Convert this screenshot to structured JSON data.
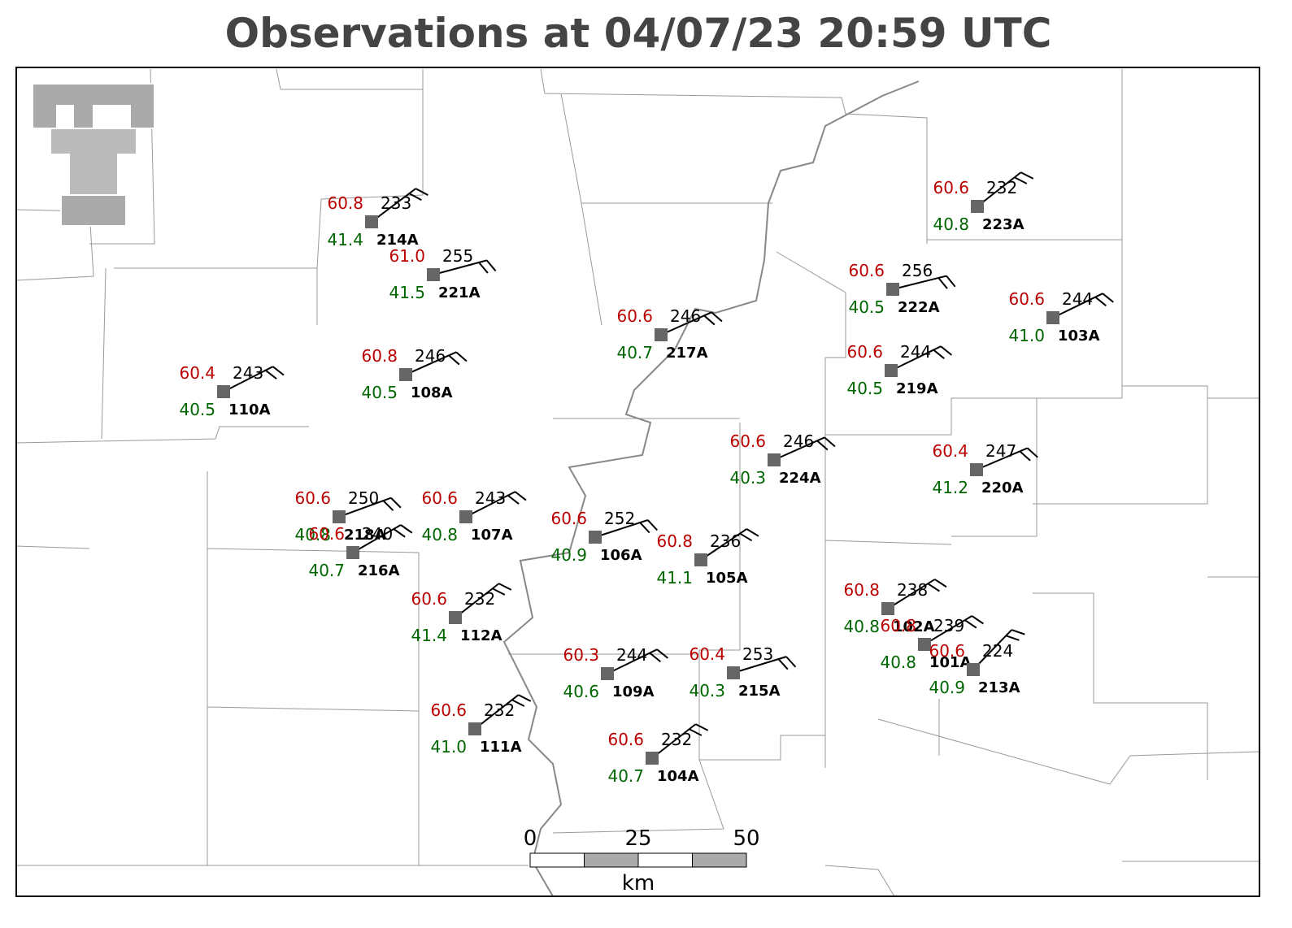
{
  "title": "Observations at 04/07/23 20:59 UTC",
  "stations": [
    {
      "id": "214A",
      "temp": "60.8",
      "dew": "41.4",
      "dir": 233
    },
    {
      "id": "221A",
      "temp": "61.0",
      "dew": "41.5",
      "dir": 255
    },
    {
      "id": "217A",
      "temp": "60.6",
      "dew": "40.7",
      "dir": 246
    },
    {
      "id": "110A",
      "temp": "60.4",
      "dew": "40.5",
      "dir": 243
    },
    {
      "id": "108A",
      "temp": "60.8",
      "dew": "40.5",
      "dir": 246
    },
    {
      "id": "223A",
      "temp": "60.6",
      "dew": "40.8",
      "dir": 232
    },
    {
      "id": "222A",
      "temp": "60.6",
      "dew": "40.5",
      "dir": 256
    },
    {
      "id": "103A",
      "temp": "60.6",
      "dew": "41.0",
      "dir": 244
    },
    {
      "id": "219A",
      "temp": "60.6",
      "dew": "40.5",
      "dir": 244
    },
    {
      "id": "224A",
      "temp": "60.6",
      "dew": "40.3",
      "dir": 246
    },
    {
      "id": "220A",
      "temp": "60.4",
      "dew": "41.2",
      "dir": 247
    },
    {
      "id": "218A",
      "temp": "60.6",
      "dew": "40.8",
      "dir": 250
    },
    {
      "id": "216A",
      "temp": "60.6",
      "dew": "40.7",
      "dir": 240
    },
    {
      "id": "107A",
      "temp": "60.6",
      "dew": "40.8",
      "dir": 243
    },
    {
      "id": "106A",
      "temp": "60.6",
      "dew": "40.9",
      "dir": 252
    },
    {
      "id": "105A",
      "temp": "60.8",
      "dew": "41.1",
      "dir": 236
    },
    {
      "id": "112A",
      "temp": "60.6",
      "dew": "41.4",
      "dir": 232
    },
    {
      "id": "102A",
      "temp": "60.8",
      "dew": "40.8",
      "dir": 238
    },
    {
      "id": "101A",
      "temp": "60.8",
      "dew": "40.8",
      "dir": 239
    },
    {
      "id": "213A",
      "temp": "60.6",
      "dew": "40.9",
      "dir": 224
    },
    {
      "id": "109A",
      "temp": "60.3",
      "dew": "40.6",
      "dir": 244
    },
    {
      "id": "215A",
      "temp": "60.4",
      "dew": "40.3",
      "dir": 253
    },
    {
      "id": "111A",
      "temp": "60.6",
      "dew": "41.0",
      "dir": 232
    },
    {
      "id": "104A",
      "temp": "60.6",
      "dew": "40.7",
      "dir": 232
    }
  ],
  "scale": {
    "ticks": [
      "0",
      "25",
      "50"
    ],
    "unit": "km"
  }
}
